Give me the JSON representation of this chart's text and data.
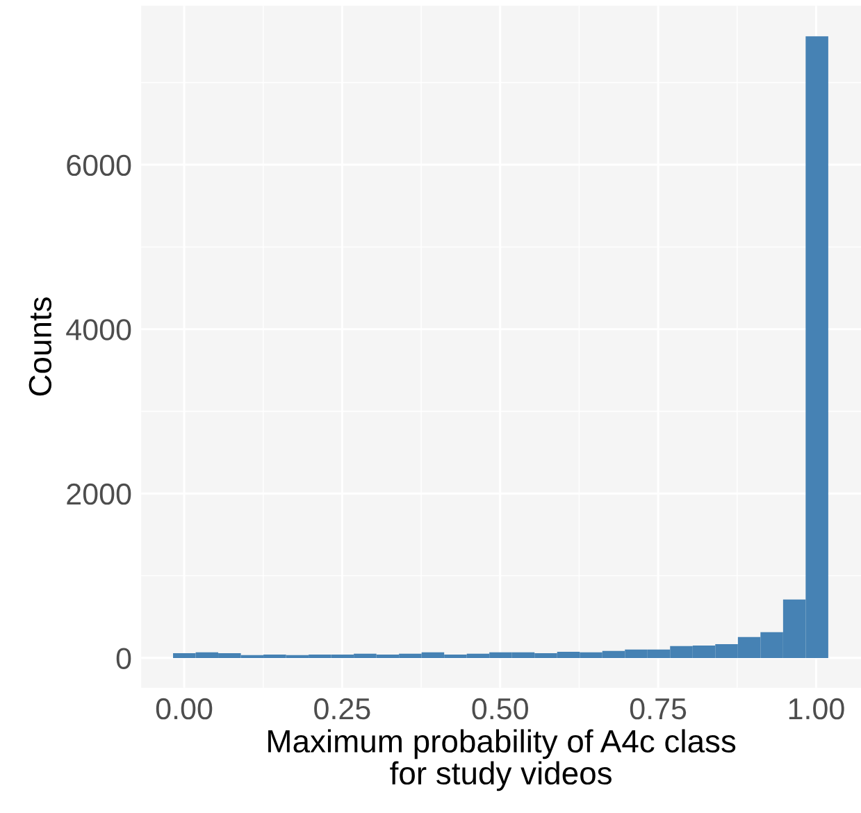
{
  "chart_data": {
    "type": "histogram",
    "xlabel": "Maximum probability of A4c class\nfor study videos",
    "ylabel": "Counts",
    "color": "#4682b4",
    "bins": [
      -0.0176,
      0.0182,
      0.0539,
      0.0897,
      0.1254,
      0.1612,
      0.1969,
      0.2327,
      0.2684,
      0.3042,
      0.3399,
      0.3757,
      0.4114,
      0.4472,
      0.4829,
      0.5187,
      0.5544,
      0.5902,
      0.6259,
      0.6617,
      0.6974,
      0.7332,
      0.7689,
      0.8047,
      0.8404,
      0.8762,
      0.9119,
      0.9477,
      0.9834,
      1.0192
    ],
    "values": [
      59,
      68,
      59,
      34,
      42,
      34,
      42,
      42,
      51,
      42,
      51,
      68,
      42,
      51,
      68,
      68,
      59,
      76,
      68,
      85,
      102,
      102,
      144,
      152,
      169,
      254,
      313,
      711,
      7563
    ],
    "xlim": [
      -0.068,
      1.071
    ],
    "ylim": [
      -363,
      7935
    ],
    "xticks": [
      {
        "value": 0,
        "label": "0.00"
      },
      {
        "value": 0.25,
        "label": "0.25"
      },
      {
        "value": 0.5,
        "label": "0.50"
      },
      {
        "value": 0.75,
        "label": "0.75"
      },
      {
        "value": 1,
        "label": "1.00"
      }
    ],
    "yticks": [
      0,
      2000,
      4000,
      6000
    ],
    "grid": true
  }
}
